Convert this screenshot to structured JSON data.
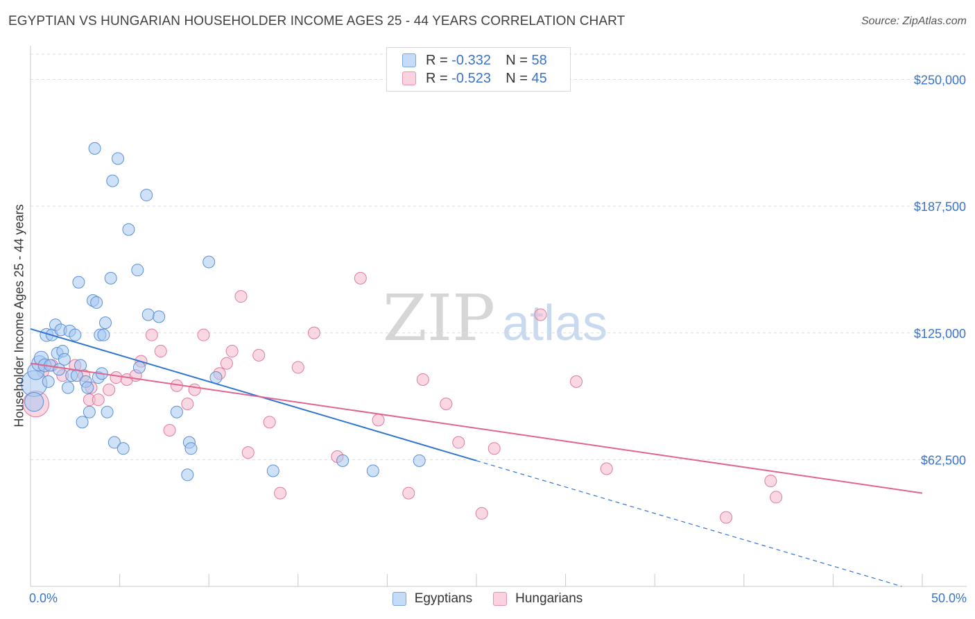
{
  "title": "EGYPTIAN VS HUNGARIAN HOUSEHOLDER INCOME AGES 25 - 44 YEARS CORRELATION CHART",
  "source": "Source: ZipAtlas.com",
  "watermark": {
    "part1": "ZIP",
    "part2": "atlas"
  },
  "legend": {
    "r_label": "R =",
    "n_label": "N =",
    "rows": [
      {
        "r": "-0.332",
        "n": "58",
        "color": "#a8c8f0"
      },
      {
        "r": "-0.523",
        "n": "45",
        "color": "#f5b8cc"
      }
    ]
  },
  "bottom_legend": [
    {
      "label": "Egyptians",
      "color": "#a8c8f0"
    },
    {
      "label": "Hungarians",
      "color": "#f5b8cc"
    }
  ],
  "colors": {
    "egypt_fill": "#a8c8f0",
    "egypt_stroke": "#5b8fd4",
    "egypt_line": "#2f74d0",
    "hung_fill": "#f5b8cc",
    "hung_stroke": "#e07a9c",
    "hung_line": "#e0648e",
    "tick_label": "#3a73c8",
    "grid": "#dedede"
  },
  "chart_data": {
    "type": "scatter",
    "xlabel": "",
    "ylabel": "Householder Income Ages 25 - 44 years",
    "xlim": [
      0,
      50
    ],
    "ylim": [
      0,
      262500
    ],
    "x_tick_labels": [
      "0.0%",
      "50.0%"
    ],
    "y_ticks": [
      {
        "value": 62500,
        "label": "$62,500"
      },
      {
        "value": 125000,
        "label": "$125,000"
      },
      {
        "value": 187500,
        "label": "$187,500"
      },
      {
        "value": 250000,
        "label": "$250,000"
      }
    ],
    "grid": true,
    "series": [
      {
        "name": "Egyptians",
        "trend": {
          "x0": 0,
          "y0": 127000,
          "x1": 25,
          "y1": 62000,
          "dashed_to_x": 50
        },
        "points": [
          [
            0.2,
            100000,
            22
          ],
          [
            0.2,
            91000,
            16
          ],
          [
            0.3,
            106000,
            14
          ],
          [
            0.5,
            110000,
            13
          ],
          [
            0.6,
            112500,
            12
          ],
          [
            0.8,
            109000,
            11
          ],
          [
            0.9,
            124000,
            11
          ],
          [
            1.0,
            101000,
            10
          ],
          [
            1.1,
            109000,
            10
          ],
          [
            1.2,
            124000,
            10
          ],
          [
            1.4,
            129000,
            10
          ],
          [
            1.5,
            115000,
            10
          ],
          [
            1.6,
            107000,
            10
          ],
          [
            1.7,
            126500,
            10
          ],
          [
            1.8,
            116000,
            10
          ],
          [
            1.9,
            112000,
            10
          ],
          [
            2.1,
            98000,
            10
          ],
          [
            2.2,
            126000,
            10
          ],
          [
            2.3,
            104000,
            10
          ],
          [
            2.5,
            124000,
            10
          ],
          [
            2.6,
            104000,
            10
          ],
          [
            2.7,
            150000,
            10
          ],
          [
            2.8,
            109000,
            10
          ],
          [
            2.9,
            81000,
            10
          ],
          [
            3.1,
            101000,
            10
          ],
          [
            3.2,
            98000,
            10
          ],
          [
            3.3,
            86000,
            10
          ],
          [
            3.5,
            141000,
            10
          ],
          [
            3.6,
            216000,
            10
          ],
          [
            3.7,
            140000,
            10
          ],
          [
            3.8,
            103000,
            10
          ],
          [
            3.9,
            124000,
            10
          ],
          [
            4.0,
            105000,
            10
          ],
          [
            4.1,
            124000,
            10
          ],
          [
            4.2,
            130000,
            10
          ],
          [
            4.3,
            86000,
            10
          ],
          [
            4.5,
            152000,
            10
          ],
          [
            4.6,
            200000,
            10
          ],
          [
            4.7,
            71000,
            10
          ],
          [
            4.9,
            211000,
            10
          ],
          [
            5.2,
            68000,
            10
          ],
          [
            5.5,
            176000,
            10
          ],
          [
            6.0,
            156000,
            10
          ],
          [
            6.1,
            108000,
            10
          ],
          [
            6.5,
            193000,
            10
          ],
          [
            6.6,
            134000,
            10
          ],
          [
            7.2,
            133000,
            10
          ],
          [
            8.2,
            86000,
            10
          ],
          [
            8.8,
            55000,
            10
          ],
          [
            8.9,
            71000,
            10
          ],
          [
            9.0,
            68000,
            10
          ],
          [
            10.0,
            160000,
            10
          ],
          [
            10.4,
            103000,
            10
          ],
          [
            13.6,
            57000,
            10
          ],
          [
            17.5,
            62000,
            10
          ],
          [
            19.2,
            57000,
            10
          ],
          [
            21.8,
            62000,
            10
          ]
        ]
      },
      {
        "name": "Hungarians",
        "trend": {
          "x0": 0,
          "y0": 110000,
          "x1": 50,
          "y1": 46000
        },
        "points": [
          [
            0.3,
            90000,
            22
          ],
          [
            0.7,
            106000,
            10
          ],
          [
            1.2,
            109000,
            10
          ],
          [
            1.8,
            104000,
            10
          ],
          [
            2.5,
            109000,
            10
          ],
          [
            3.0,
            104000,
            10
          ],
          [
            3.3,
            92000,
            10
          ],
          [
            3.4,
            98000,
            10
          ],
          [
            3.8,
            92000,
            10
          ],
          [
            4.4,
            97000,
            10
          ],
          [
            4.8,
            103000,
            10
          ],
          [
            5.4,
            102000,
            10
          ],
          [
            5.9,
            104000,
            10
          ],
          [
            6.2,
            111000,
            10
          ],
          [
            6.8,
            124000,
            10
          ],
          [
            7.3,
            116000,
            10
          ],
          [
            7.8,
            77000,
            10
          ],
          [
            8.2,
            99000,
            10
          ],
          [
            8.8,
            90000,
            10
          ],
          [
            9.2,
            97000,
            10
          ],
          [
            9.7,
            124000,
            10
          ],
          [
            10.6,
            105000,
            10
          ],
          [
            11.0,
            110000,
            10
          ],
          [
            11.3,
            116000,
            10
          ],
          [
            11.8,
            143000,
            10
          ],
          [
            12.2,
            66000,
            10
          ],
          [
            12.8,
            114000,
            10
          ],
          [
            13.4,
            81000,
            10
          ],
          [
            14.0,
            46000,
            10
          ],
          [
            15.0,
            108000,
            10
          ],
          [
            15.9,
            125000,
            10
          ],
          [
            17.2,
            64000,
            10
          ],
          [
            18.5,
            152000,
            10
          ],
          [
            19.5,
            82000,
            10
          ],
          [
            21.2,
            46000,
            10
          ],
          [
            22.0,
            102000,
            10
          ],
          [
            23.3,
            90000,
            10
          ],
          [
            24.0,
            71000,
            10
          ],
          [
            25.3,
            36000,
            10
          ],
          [
            26.0,
            68000,
            10
          ],
          [
            28.6,
            134000,
            10
          ],
          [
            30.6,
            101000,
            10
          ],
          [
            32.3,
            58000,
            10
          ],
          [
            39.0,
            34000,
            10
          ],
          [
            41.5,
            52000,
            10
          ],
          [
            41.8,
            44000,
            10
          ]
        ]
      }
    ]
  }
}
